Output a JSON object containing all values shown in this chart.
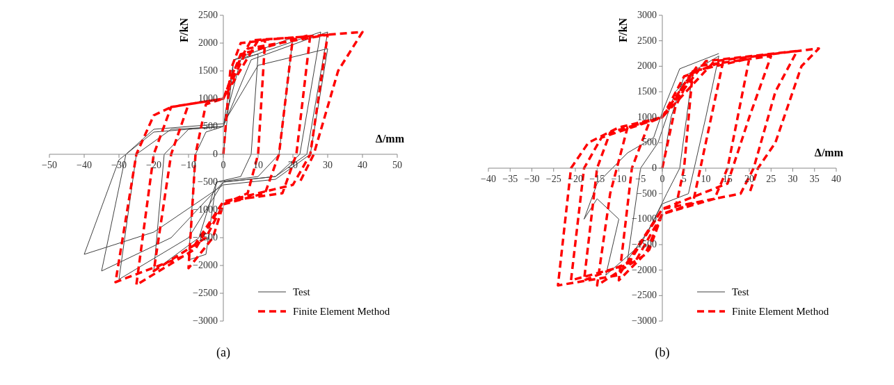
{
  "chart_data": [
    {
      "type": "line",
      "title": "(a)",
      "xlabel": "Δ/mm",
      "ylabel": "F/kN",
      "xlim": [
        -50,
        50
      ],
      "xticks": [
        -50,
        -40,
        -30,
        -20,
        -10,
        0,
        10,
        20,
        30,
        40,
        50
      ],
      "ylim": [
        -3000,
        2500
      ],
      "yticks": [
        -3000,
        -2500,
        -2000,
        -1500,
        -1000,
        -500,
        0,
        500,
        1000,
        1500,
        2000,
        2500
      ],
      "grid": false,
      "legend": "bottom right",
      "marker": "none",
      "series": [
        {
          "name": "Test",
          "color": "#404040",
          "line_style": "solid",
          "x": [
            0,
            3,
            10,
            8,
            5,
            -2,
            -5,
            -10,
            -8,
            -5,
            0,
            3,
            20,
            16,
            10,
            -2,
            -7,
            -20,
            -17,
            -10,
            0,
            5,
            28,
            22,
            15,
            0,
            -10,
            -30,
            -25,
            -15,
            0,
            8,
            30,
            24,
            15,
            0,
            -15,
            -35,
            -28,
            -20,
            0,
            10,
            30,
            25,
            15,
            0,
            -20,
            -40,
            -30,
            -20,
            0
          ],
          "values": [
            0,
            1700,
            1800,
            0,
            -400,
            -500,
            -1800,
            -1900,
            0,
            400,
            500,
            1700,
            2100,
            0,
            -400,
            -500,
            -1500,
            -2100,
            0,
            450,
            500,
            1700,
            2200,
            0,
            -400,
            -500,
            -1500,
            -2250,
            0,
            450,
            500,
            1700,
            2200,
            0,
            -400,
            -500,
            -1500,
            -2100,
            0,
            450,
            550,
            1600,
            1900,
            0,
            -450,
            -550,
            -1400,
            -1800,
            -100,
            400,
            500
          ]
        },
        {
          "name": "Finite Element Method",
          "color": "#ff0000",
          "line_style": "dashed",
          "x": [
            0,
            2,
            5,
            12,
            10,
            7,
            0,
            -3,
            -10,
            -8,
            -5,
            0,
            3,
            8,
            20,
            16,
            12,
            0,
            -5,
            -20,
            -15,
            -10,
            0,
            5,
            25,
            21,
            17,
            0,
            -8,
            -25,
            -20,
            -15,
            0,
            7,
            30,
            25,
            20,
            0,
            -10,
            -31,
            -25,
            -20,
            -15,
            0,
            10,
            40,
            33,
            26,
            22
          ],
          "values": [
            0,
            1500,
            2000,
            2050,
            0,
            -700,
            -900,
            -1500,
            -2050,
            0,
            900,
            1000,
            1500,
            2050,
            2100,
            0,
            -700,
            -900,
            -1500,
            -2100,
            0,
            900,
            1000,
            1800,
            2150,
            0,
            -700,
            -850,
            -1700,
            -2350,
            0,
            850,
            1000,
            1900,
            2150,
            0,
            -550,
            -850,
            -1800,
            -2300,
            0,
            700,
            850,
            1000,
            2050,
            2200,
            1500,
            0,
            -500
          ]
        }
      ]
    },
    {
      "type": "line",
      "title": "(b)",
      "xlabel": "Δ/mm",
      "ylabel": "F/kN",
      "xlim": [
        -40,
        40
      ],
      "xticks": [
        -40,
        -35,
        -30,
        -25,
        -20,
        -15,
        -10,
        -5,
        0,
        5,
        10,
        15,
        20,
        25,
        30,
        35,
        40
      ],
      "ylim": [
        -3000,
        3000
      ],
      "yticks": [
        -3000,
        -2500,
        -2000,
        -1500,
        -1000,
        -500,
        0,
        500,
        1000,
        1500,
        2000,
        2500,
        3000
      ],
      "grid": false,
      "legend": "bottom right",
      "marker": "none",
      "series": [
        {
          "name": "Test",
          "color": "#404040",
          "line_style": "solid",
          "x": [
            0,
            2,
            5,
            7,
            4,
            1,
            -3,
            -8,
            -5,
            -1,
            3,
            8,
            13,
            10,
            6,
            0,
            -5,
            -13,
            -10,
            -15,
            -18,
            -15,
            -8,
            -2,
            0,
            4,
            13
          ],
          "values": [
            0,
            1000,
            1800,
            1900,
            0,
            -500,
            -1200,
            -1800,
            0,
            500,
            1500,
            1950,
            2200,
            1000,
            -500,
            -700,
            -1500,
            -2100,
            -1000,
            -600,
            -1000,
            -300,
            300,
            600,
            1100,
            1950,
            2250
          ]
        },
        {
          "name": "Finite Element Method",
          "color": "#ff0000",
          "line_style": "dashed",
          "x": [
            0,
            3,
            7,
            5,
            3,
            0,
            -3,
            -10,
            -7,
            -3,
            0,
            5,
            14,
            10,
            7,
            0,
            -4,
            -15,
            -12,
            -8,
            0,
            7,
            20,
            15,
            12,
            0,
            -6,
            -18,
            -15,
            -12,
            0,
            8,
            25,
            20,
            15,
            0,
            -8,
            -21,
            -18,
            -14,
            0,
            10,
            31,
            26,
            21,
            18,
            0,
            -10,
            -24,
            -21,
            -17,
            -10,
            0,
            12,
            36,
            32,
            26,
            22,
            20
          ],
          "values": [
            0,
            1200,
            1900,
            0,
            -800,
            -900,
            -1600,
            -2200,
            0,
            900,
            1000,
            1800,
            2100,
            500,
            -700,
            -900,
            -1700,
            -2300,
            -500,
            800,
            1000,
            1900,
            2150,
            0,
            -600,
            -900,
            -1800,
            -2200,
            0,
            700,
            1000,
            2000,
            2200,
            1000,
            -300,
            -800,
            -1900,
            -2200,
            0,
            600,
            1000,
            2100,
            2300,
            1500,
            0,
            -500,
            -800,
            -2100,
            -2300,
            0,
            500,
            800,
            1000,
            2100,
            2350,
            2000,
            500,
            0,
            -500
          ]
        }
      ]
    }
  ]
}
